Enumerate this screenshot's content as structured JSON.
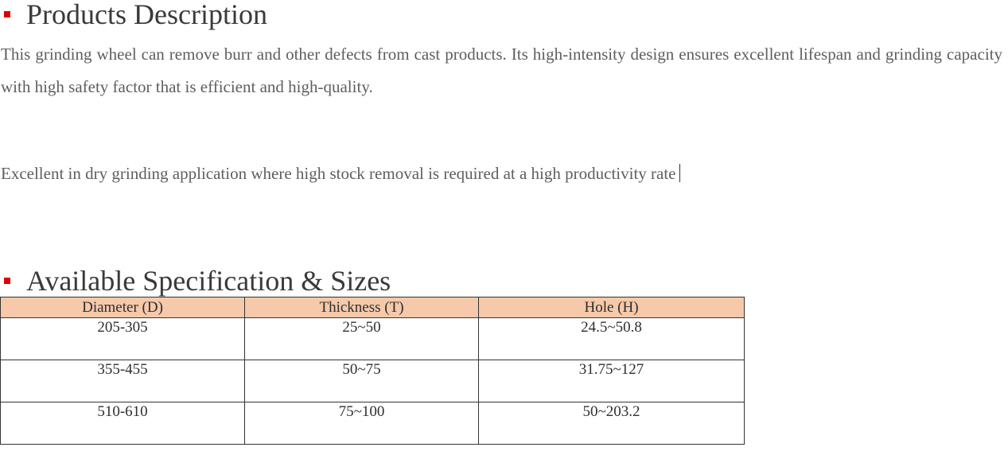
{
  "section1": {
    "heading": "Products Description",
    "paragraph1": "This grinding wheel can remove burr and other defects from cast products. Its high-intensity design ensures excellent lifespan and grinding capacity with high safety factor that is efficient and high-quality.",
    "paragraph2": "Excellent in dry grinding application where high stock removal is required at a high productivity rate"
  },
  "section2": {
    "heading": "Available Specification & Sizes",
    "table": {
      "headers": [
        "Diameter (D)",
        "Thickness (T)",
        "Hole (H)"
      ],
      "rows": [
        [
          "205-305",
          "25~50",
          "24.5~50.8"
        ],
        [
          "355-455",
          "50~75",
          "31.75~127"
        ],
        [
          "510-610",
          "75~100",
          "50~203.2"
        ]
      ]
    }
  },
  "colors": {
    "bullet": "#e00000",
    "table_header_bg": "#f6c9aa"
  }
}
